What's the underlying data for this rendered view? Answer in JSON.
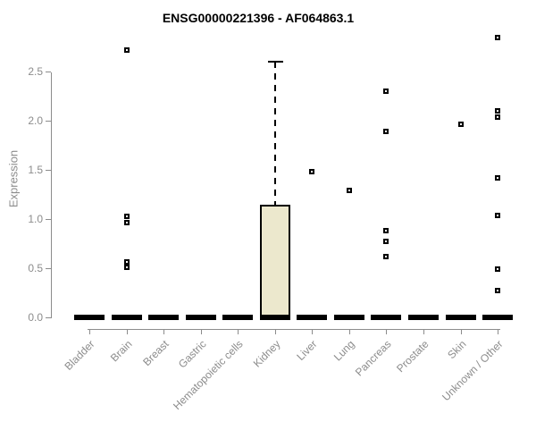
{
  "title": "ENSG00000221396 - AF064863.1",
  "chart_data": {
    "type": "boxplot",
    "title": "ENSG00000221396 - AF064863.1",
    "xlabel": "",
    "ylabel": "Expression",
    "ylim": [
      0.0,
      2.9
    ],
    "yticks": [
      0.0,
      0.5,
      1.0,
      1.5,
      2.0,
      2.5
    ],
    "grid": false,
    "legend_position": "none",
    "categories": [
      "Bladder",
      "Brain",
      "Breast",
      "Gastric",
      "Hematopoietic cells",
      "Kidney",
      "Liver",
      "Lung",
      "Pancreas",
      "Prostate",
      "Skin",
      "Unknown / Other"
    ],
    "boxes": [
      {
        "category": "Bladder",
        "q1": 0,
        "median": 0,
        "q3": 0,
        "whisker_low": 0,
        "whisker_high": 0,
        "outliers": []
      },
      {
        "category": "Brain",
        "q1": 0,
        "median": 0,
        "q3": 0,
        "whisker_low": 0,
        "whisker_high": 0,
        "outliers": [
          2.72,
          1.03,
          0.96,
          0.56,
          0.51
        ]
      },
      {
        "category": "Breast",
        "q1": 0,
        "median": 0,
        "q3": 0,
        "whisker_low": 0,
        "whisker_high": 0,
        "outliers": []
      },
      {
        "category": "Gastric",
        "q1": 0,
        "median": 0,
        "q3": 0,
        "whisker_low": 0,
        "whisker_high": 0,
        "outliers": []
      },
      {
        "category": "Hematopoietic cells",
        "q1": 0,
        "median": 0,
        "q3": 0,
        "whisker_low": 0,
        "whisker_high": 0,
        "outliers": []
      },
      {
        "category": "Kidney",
        "q1": 0,
        "median": 0,
        "q3": 1.15,
        "whisker_low": 0,
        "whisker_high": 2.6,
        "outliers": []
      },
      {
        "category": "Liver",
        "q1": 0,
        "median": 0,
        "q3": 0,
        "whisker_low": 0,
        "whisker_high": 0,
        "outliers": [
          1.48
        ]
      },
      {
        "category": "Lung",
        "q1": 0,
        "median": 0,
        "q3": 0,
        "whisker_low": 0,
        "whisker_high": 0,
        "outliers": [
          1.29
        ]
      },
      {
        "category": "Pancreas",
        "q1": 0,
        "median": 0,
        "q3": 0,
        "whisker_low": 0,
        "whisker_high": 0,
        "outliers": [
          2.3,
          1.89,
          0.88,
          0.77,
          0.62
        ]
      },
      {
        "category": "Prostate",
        "q1": 0,
        "median": 0,
        "q3": 0,
        "whisker_low": 0,
        "whisker_high": 0,
        "outliers": []
      },
      {
        "category": "Skin",
        "q1": 0,
        "median": 0,
        "q3": 0,
        "whisker_low": 0,
        "whisker_high": 0,
        "outliers": [
          1.96
        ]
      },
      {
        "category": "Unknown / Other",
        "q1": 0,
        "median": 0,
        "q3": 0,
        "whisker_low": 0,
        "whisker_high": 0,
        "outliers": [
          2.85,
          2.1,
          2.04,
          1.42,
          1.04,
          0.49,
          0.27
        ]
      }
    ],
    "colors": {
      "box_fill": "#ece8cd",
      "box_border": "#000000",
      "median": "#000000",
      "whisker": "#000000",
      "outlier_border": "#000000",
      "outlier_fill": "#ffffff",
      "axis": "#8c8c8c",
      "tick_label": "#8c8c8c",
      "title": "#000000",
      "background": "#ffffff"
    }
  }
}
